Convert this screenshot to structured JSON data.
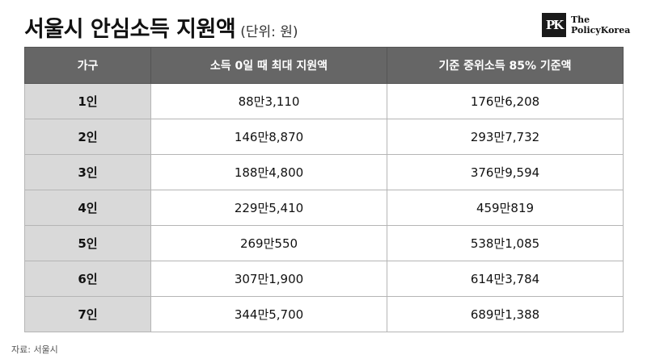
{
  "header": {
    "title": "서울시 안심소득 지원액",
    "unit": "(단위: 원)"
  },
  "logo": {
    "mark": "PK",
    "line1": "The",
    "line2": "PolicyKorea"
  },
  "table": {
    "columns": [
      "가구",
      "소득 0일 때 최대 지원액",
      "기준 중위소득 85% 기준액"
    ],
    "rows": [
      [
        "1인",
        "88만3,110",
        "176만6,208"
      ],
      [
        "2인",
        "146만8,870",
        "293만7,732"
      ],
      [
        "3인",
        "188만4,800",
        "376만9,594"
      ],
      [
        "4인",
        "229만5,410",
        "459만819"
      ],
      [
        "5인",
        "269만550",
        "538만1,085"
      ],
      [
        "6인",
        "307만1,900",
        "614만3,784"
      ],
      [
        "7인",
        "344만5,700",
        "689만1,388"
      ]
    ]
  },
  "source": "자료:  서울시"
}
